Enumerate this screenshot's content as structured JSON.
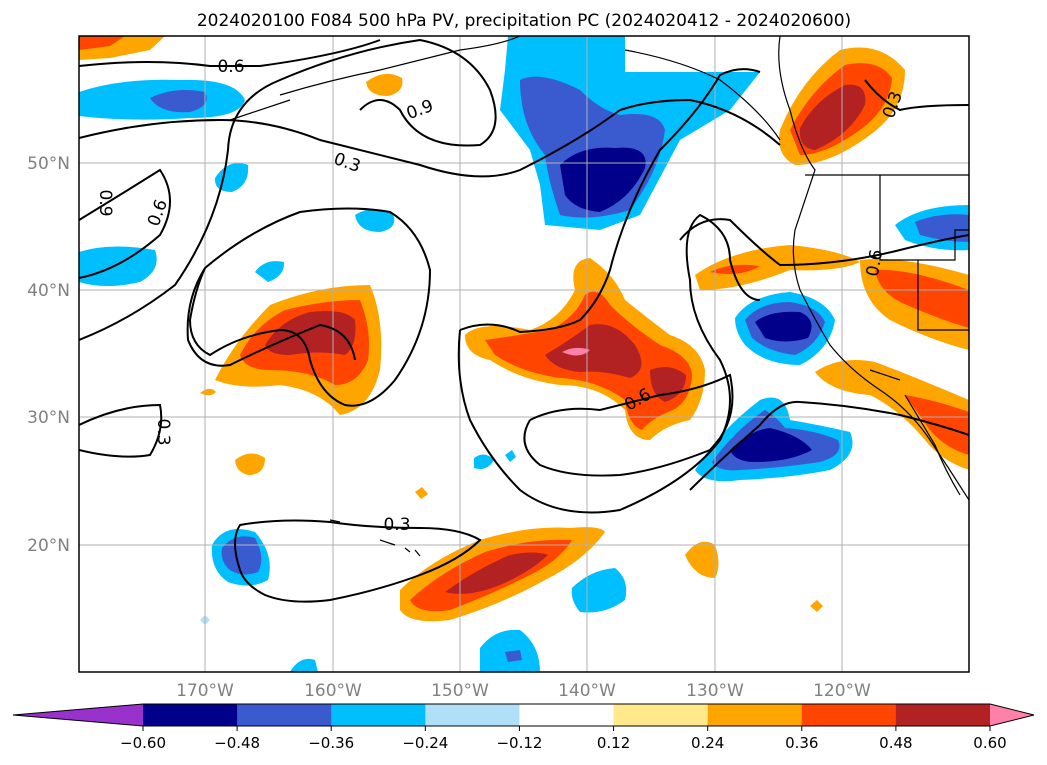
{
  "chart_data": {
    "type": "contour-map",
    "title": "2024020100 F084 500 hPa PV, precipitation PC (2024020412 - 2024020600)",
    "xlabel": "",
    "ylabel": "",
    "x_ticks": [
      "170°W",
      "160°W",
      "150°W",
      "140°W",
      "130°W",
      "120°W"
    ],
    "x_tick_values": [
      -170,
      -160,
      -150,
      -140,
      -130,
      -120
    ],
    "y_ticks": [
      "20°N",
      "30°N",
      "40°N",
      "50°N"
    ],
    "y_tick_values": [
      20,
      30,
      40,
      50
    ],
    "lon_range": [
      -180,
      -110
    ],
    "lat_range": [
      10,
      60
    ],
    "grid": true,
    "colorbar": {
      "orientation": "horizontal",
      "extend": "both",
      "tick_labels": [
        "−0.60",
        "−0.48",
        "−0.36",
        "−0.24",
        "−0.12",
        "0.12",
        "0.24",
        "0.36",
        "0.48",
        "0.60"
      ],
      "levels": [
        -0.6,
        -0.48,
        -0.36,
        -0.24,
        -0.12,
        0.12,
        0.24,
        0.36,
        0.48,
        0.6
      ],
      "colors": [
        "#9932cc",
        "#00008b",
        "#3a5bcf",
        "#00bfff",
        "#b0e0f8",
        "#ffffff",
        "#ffe98a",
        "#ffa500",
        "#ff4500",
        "#b22222",
        "#ff80a8"
      ]
    },
    "pv_contour_labels": [
      "0.6",
      "0.9",
      "0.3",
      "0.9",
      "0.6",
      "0.3",
      "0.6",
      "0.3",
      "0.6",
      "0.3"
    ]
  }
}
